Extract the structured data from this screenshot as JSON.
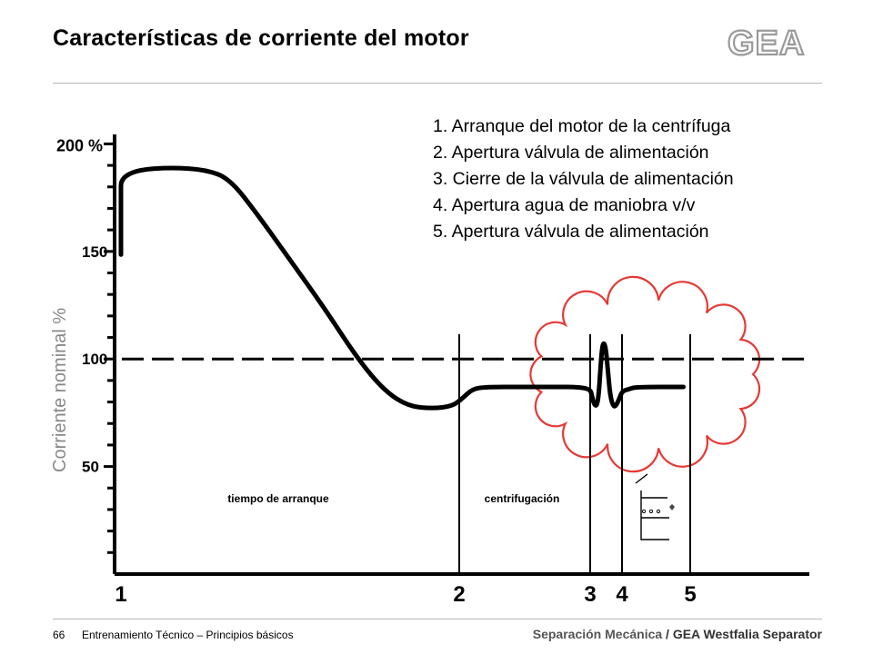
{
  "slide": {
    "title": "Características de corriente del motor",
    "logo_text": "GEA",
    "page_number": "66",
    "footer_left": "Entrenamiento Técnico – Principios básicos",
    "footer_right_a": "Separación Mecánica",
    "footer_right_sep": " / ",
    "footer_right_b": "GEA Westfalia Separator"
  },
  "legend": [
    "1. Arranque del motor de la centrífuga",
    "2. Apertura válvula de alimentación",
    "3. Cierre de la válvula de alimentación",
    "4. Apertura agua de maniobra v/v",
    "5. Apertura válvula de alimentación"
  ],
  "colors": {
    "curve": "#000000",
    "cloud": "#e53935",
    "ylabel": "#888888",
    "logo": "#9a9a9a"
  },
  "chart_data": {
    "type": "line",
    "ylabel": "Corriente nominal  %",
    "yticks": [
      50,
      100,
      150
    ],
    "ytick_top_label": "200 %",
    "ylim": [
      0,
      200
    ],
    "reference_line": 100,
    "phases": [
      "tiempo de arranque",
      "centrifugación"
    ],
    "event_markers": [
      {
        "label": "1",
        "x": 1
      },
      {
        "label": "2",
        "x": 2
      },
      {
        "label": "3",
        "x": 3
      },
      {
        "label": "4",
        "x": 4
      },
      {
        "label": "5",
        "x": 5
      }
    ],
    "series": [
      {
        "points": [
          [
            0.0,
            153
          ],
          [
            0.05,
            165
          ],
          [
            0.11,
            169
          ],
          [
            0.2,
            164
          ],
          [
            0.3,
            156
          ],
          [
            0.4,
            150
          ],
          [
            0.47,
            148
          ],
          [
            0.55,
            150
          ],
          [
            0.65,
            157
          ],
          [
            0.75,
            167
          ],
          [
            0.85,
            177
          ],
          [
            0.95,
            184
          ],
          [
            1.05,
            188
          ],
          [
            1.15,
            189
          ],
          [
            1.25,
            188
          ],
          [
            1.32,
            184
          ],
          [
            1.4,
            168
          ],
          [
            1.5,
            146
          ],
          [
            1.6,
            124
          ],
          [
            1.7,
            100
          ],
          [
            1.78,
            85
          ],
          [
            1.85,
            78
          ],
          [
            1.92,
            77
          ],
          [
            1.98,
            78
          ],
          [
            2.03,
            82
          ],
          [
            2.1,
            86
          ],
          [
            2.2,
            87
          ],
          [
            2.5,
            87
          ],
          [
            2.75,
            87
          ],
          [
            2.9,
            87
          ],
          [
            3.0,
            86
          ],
          [
            3.05,
            83
          ],
          [
            3.12,
            79
          ],
          [
            3.2,
            78
          ],
          [
            3.26,
            82
          ],
          [
            3.32,
            95
          ],
          [
            3.37,
            105
          ],
          [
            3.43,
            108
          ],
          [
            3.5,
            104
          ],
          [
            3.56,
            94
          ],
          [
            3.63,
            83
          ],
          [
            3.72,
            78
          ],
          [
            3.8,
            78
          ],
          [
            3.9,
            81
          ],
          [
            4.0,
            85
          ],
          [
            4.1,
            86
          ],
          [
            4.2,
            87
          ],
          [
            4.9,
            87
          ]
        ]
      }
    ]
  }
}
